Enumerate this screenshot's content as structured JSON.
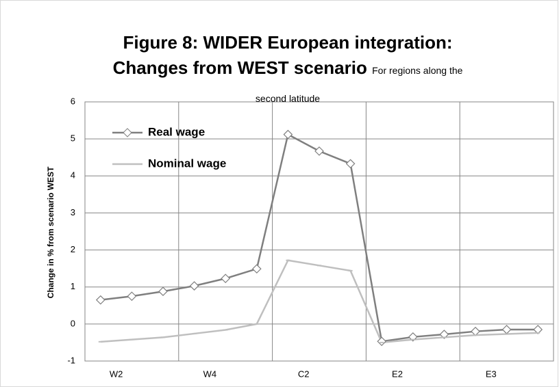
{
  "chart_data": {
    "type": "line",
    "title": "Figure 8: WIDER European integration: Changes from WEST scenario",
    "subtitle": "For regions along the second latitude",
    "y_label": "Change in % from scenario WEST",
    "categories": [
      "W2",
      null,
      null,
      "W4",
      null,
      null,
      "C2",
      null,
      null,
      "E2",
      null,
      null,
      "E3",
      null,
      null
    ],
    "series": [
      {
        "name": "Real wage",
        "color": "#7f7f7f",
        "marker": "diamond",
        "values": [
          0.65,
          0.75,
          0.88,
          1.03,
          1.23,
          1.49,
          5.12,
          4.67,
          4.33,
          -0.47,
          -0.35,
          -0.28,
          -0.2,
          -0.15,
          -0.15
        ]
      },
      {
        "name": "Nominal wage",
        "color": "#bfbfbf",
        "marker": "dash",
        "values": [
          -0.48,
          -0.42,
          -0.36,
          -0.26,
          -0.16,
          0.0,
          1.72,
          1.58,
          1.44,
          -0.5,
          -0.42,
          -0.36,
          -0.3,
          -0.27,
          -0.24
        ]
      }
    ],
    "ylim": [
      -1,
      6
    ],
    "yticks": [
      -1,
      0,
      1,
      2,
      3,
      4,
      5,
      6
    ],
    "grid": true,
    "legend": "upper left"
  }
}
